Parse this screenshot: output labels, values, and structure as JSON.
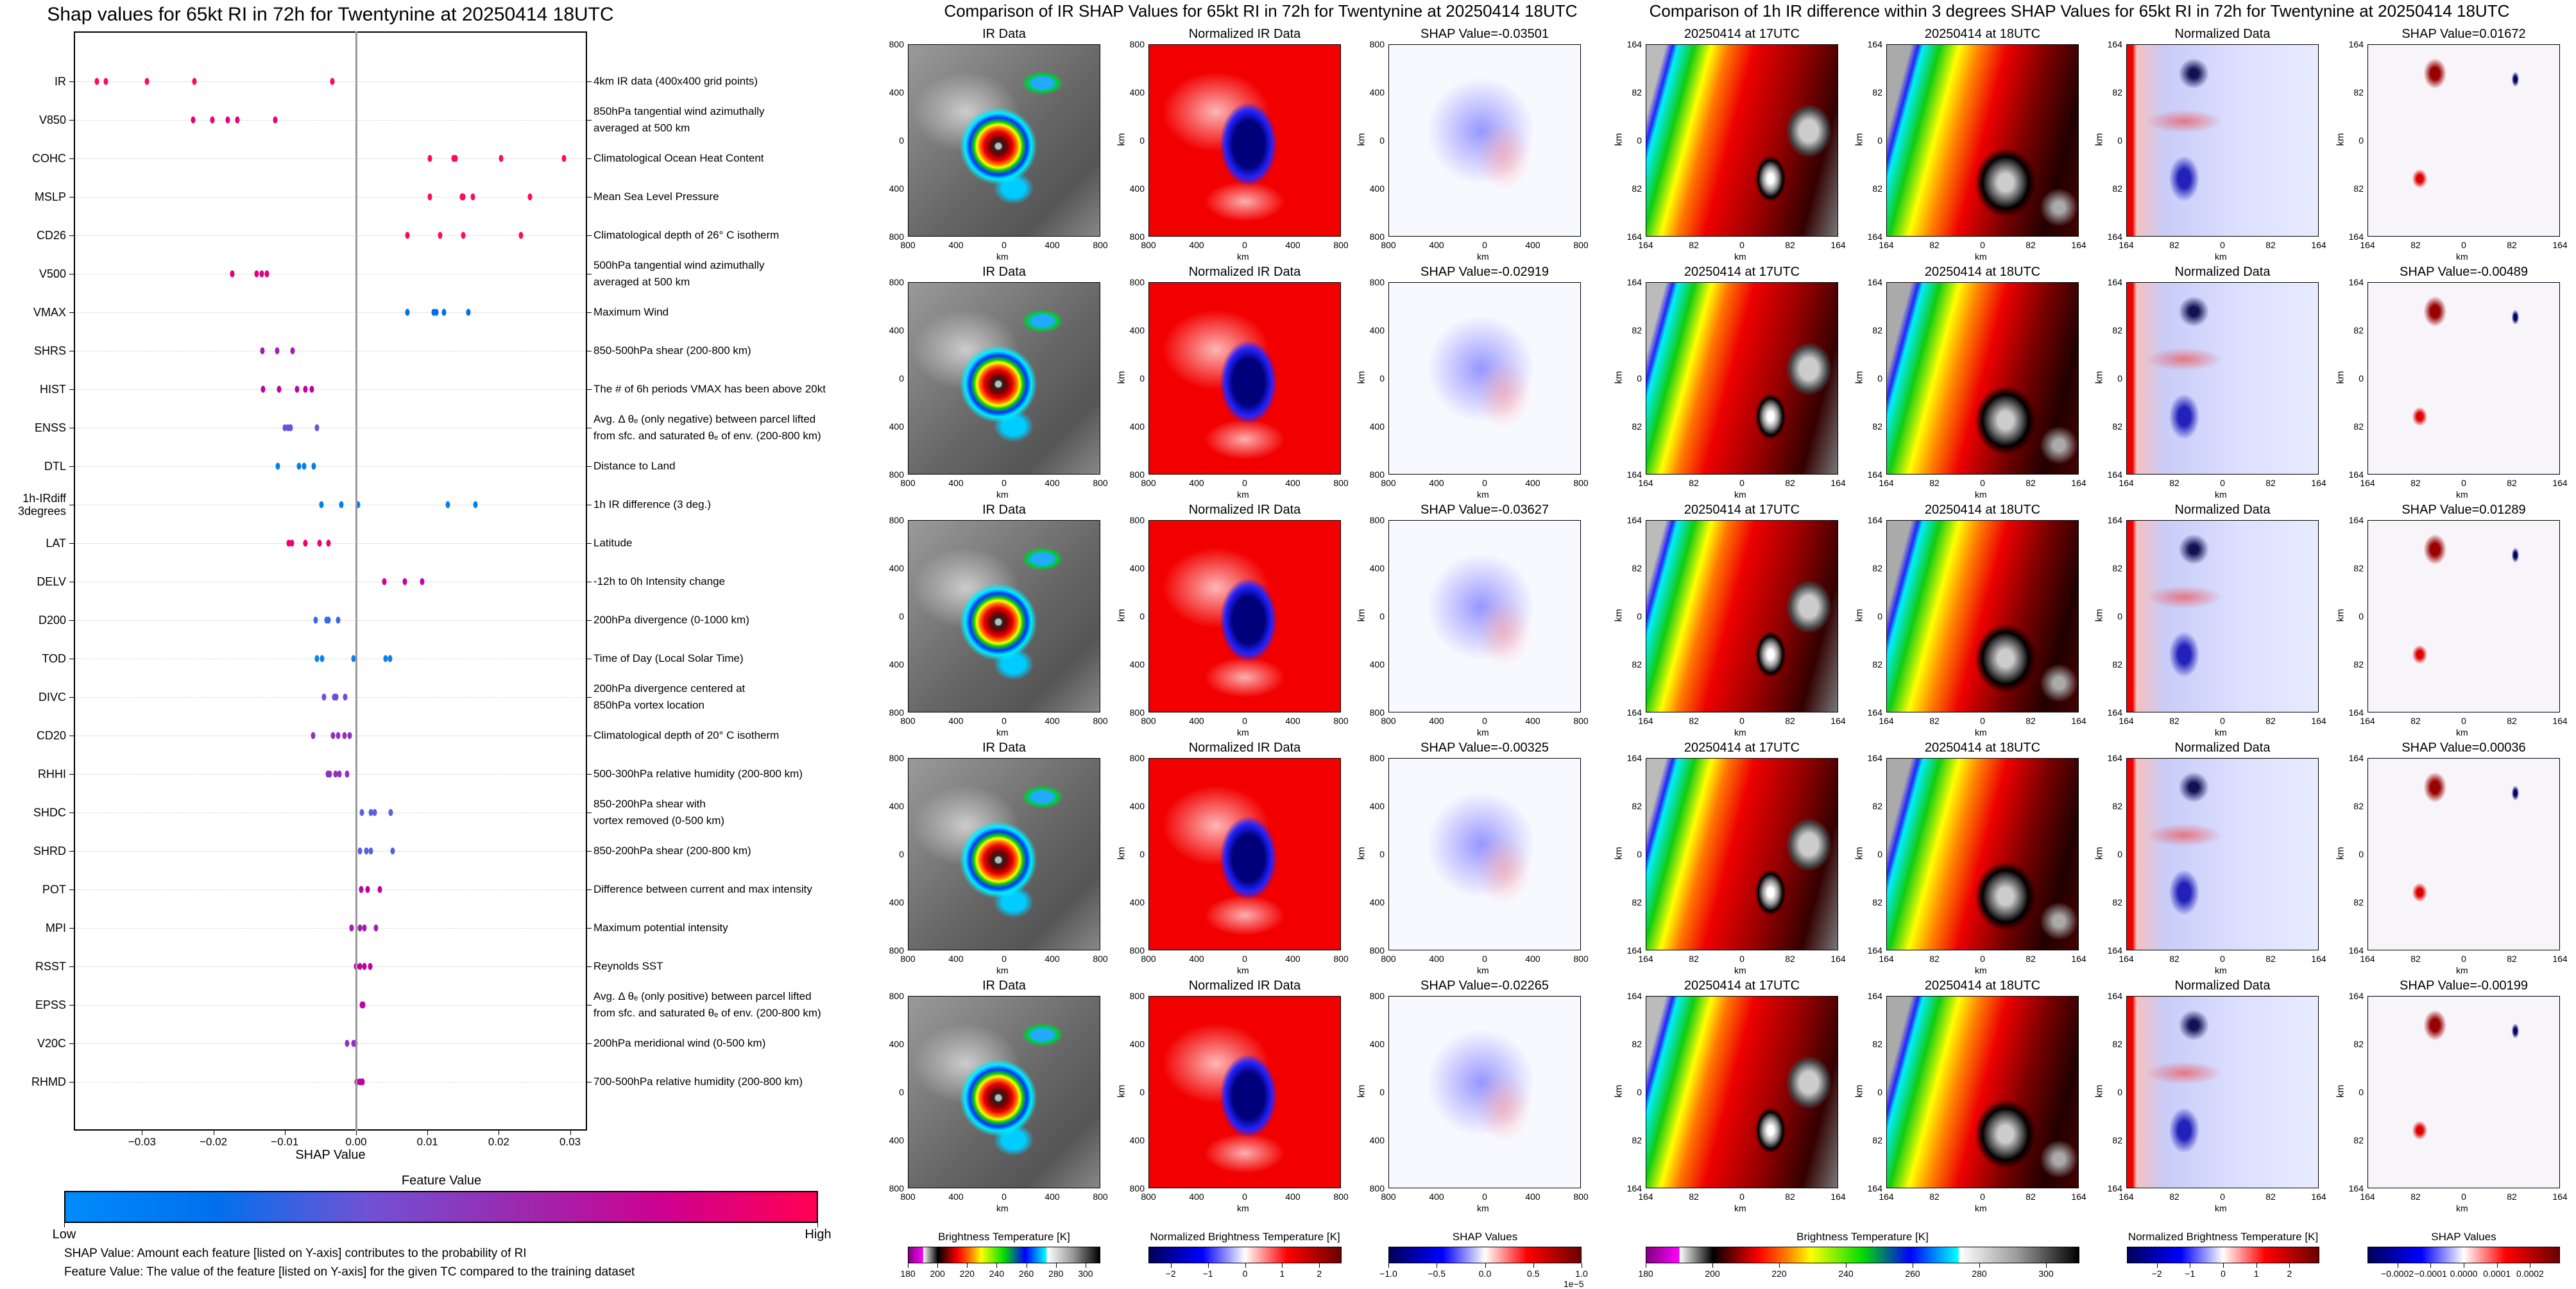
{
  "left": {
    "title": "Shap values for 65kt RI in 72h for Twentynine at 20250414 18UTC",
    "xlabel": "SHAP Value",
    "xrange": [
      -0.0396,
      0.0324
    ],
    "xticks": [
      {
        "v": -0.03,
        "label": "−0.03"
      },
      {
        "v": -0.02,
        "label": "−0.02"
      },
      {
        "v": -0.01,
        "label": "−0.01"
      },
      {
        "v": 0,
        "label": "0.00"
      },
      {
        "v": 0.01,
        "label": "0.01"
      },
      {
        "v": 0.02,
        "label": "0.02"
      },
      {
        "v": 0.03,
        "label": "0.03"
      }
    ],
    "features": [
      {
        "code": "IR",
        "description": "4km IR data (400x400 grid points)",
        "color": "#ff0a5a",
        "shap": [
          -0.0363,
          -0.0351,
          -0.0293,
          -0.0227,
          -0.0033
        ]
      },
      {
        "code": "V850",
        "description": "850hPa tangential wind azimuthally\naveraged at 500 km",
        "color": "#e6007e",
        "shap": [
          -0.0228,
          -0.0201,
          -0.018,
          -0.0166,
          -0.0113
        ]
      },
      {
        "code": "COHC",
        "description": "Climatological Ocean Heat Content",
        "color": "#ff0a5a",
        "shap": [
          0.0103,
          0.0137,
          0.0139,
          0.0203,
          0.0291
        ]
      },
      {
        "code": "MSLP",
        "description": "Mean Sea Level Pressure",
        "color": "#ff0a5a",
        "shap": [
          0.0103,
          0.0148,
          0.015,
          0.0164,
          0.0244
        ]
      },
      {
        "code": "CD26",
        "description": "Climatological depth of 26° C isotherm",
        "color": "#ff0a5a",
        "shap": [
          0.0072,
          0.0118,
          0.015,
          0.0231
        ]
      },
      {
        "code": "V500",
        "description": "500hPa tangential wind azimuthally\naveraged at 500 km",
        "color": "#e0007f",
        "shap": [
          -0.0174,
          -0.0139,
          -0.0132,
          -0.0125
        ]
      },
      {
        "code": "VMAX",
        "description": "Maximum Wind",
        "color": "#0070f0",
        "shap": [
          0.0072,
          0.0109,
          0.0112,
          0.0123,
          0.0157
        ]
      },
      {
        "code": "SHRS",
        "description": "850-500hPa shear (200-800 km)",
        "color": "#a020b0",
        "shap": [
          -0.0131,
          -0.0111,
          -0.0089
        ]
      },
      {
        "code": "HIST",
        "description": "The # of 6h periods VMAX has been above 20kt",
        "color": "#c000a0",
        "shap": [
          -0.013,
          -0.0108,
          -0.0083,
          -0.0071,
          -0.0062
        ]
      },
      {
        "code": "ENSS",
        "description": "Avg. Δ θₑ (only negative) between parcel lifted\nfrom sfc. and saturated θₑ of env. (200-800 km)",
        "color": "#7050d8",
        "shap": [
          -0.01,
          -0.0095,
          -0.0092,
          -0.0055
        ]
      },
      {
        "code": "DTL",
        "description": "Distance to Land",
        "color": "#0080f0",
        "shap": [
          -0.011,
          -0.008,
          -0.0073,
          -0.0059
        ]
      },
      {
        "code": "1h-IRdiff\n3degrees",
        "description": "1h IR difference (3 deg.)",
        "color": "#0080f0",
        "shap": [
          -0.0049,
          -0.0021,
          0.0003,
          0.0129,
          0.0167
        ]
      },
      {
        "code": "LAT",
        "description": "Latitude",
        "color": "#f00070",
        "shap": [
          -0.0094,
          -0.009,
          -0.0071,
          -0.0051,
          -0.0039
        ]
      },
      {
        "code": "DELV",
        "description": "-12h to 0h Intensity change",
        "color": "#d0009a",
        "shap": [
          0.004,
          0.0068,
          0.0093
        ]
      },
      {
        "code": "D200",
        "description": "200hPa divergence (0-1000 km)",
        "color": "#3a6ae8",
        "shap": [
          -0.0057,
          -0.0041,
          -0.0039,
          -0.0025
        ]
      },
      {
        "code": "TOD",
        "description": "Time of Day (Local Solar Time)",
        "color": "#1080f0",
        "shap": [
          -0.0055,
          -0.0048,
          -0.0004,
          0.0041,
          0.0048
        ]
      },
      {
        "code": "DIVC",
        "description": "200hPa divergence centered at\n850hPa vortex location",
        "color": "#6a50d8",
        "shap": [
          -0.0045,
          -0.0031,
          -0.0028,
          -0.0015
        ]
      },
      {
        "code": "CD20",
        "description": "Climatological depth of 20° C isotherm",
        "color": "#9030c0",
        "shap": [
          -0.006,
          -0.0032,
          -0.0025,
          -0.0016,
          -0.0009
        ]
      },
      {
        "code": "RHHI",
        "description": "500-300hPa relative humidity (200-800 km)",
        "color": "#9030c0",
        "shap": [
          -0.004,
          -0.0037,
          -0.0029,
          -0.0023,
          -0.0013
        ]
      },
      {
        "code": "SHDC",
        "description": "850-200hPa shear with\nvortex removed (0-500 km)",
        "color": "#5a60e0",
        "shap": [
          0.0008,
          0.0021,
          0.0026,
          0.0049
        ]
      },
      {
        "code": "SHRD",
        "description": "850-200hPa shear (200-800 km)",
        "color": "#5a60e0",
        "shap": [
          0.0005,
          0.0014,
          0.0021,
          0.0051
        ]
      },
      {
        "code": "POT",
        "description": "Difference between current and max intensity",
        "color": "#c000a0",
        "shap": [
          0.0007,
          0.0016,
          0.0033
        ]
      },
      {
        "code": "MPI",
        "description": "Maximum potential intensity",
        "color": "#a020b0",
        "shap": [
          -0.0006,
          0.0005,
          0.0012,
          0.0028
        ]
      },
      {
        "code": "RSST",
        "description": "Reynolds SST",
        "color": "#c000a0",
        "shap": [
          0.0,
          0.0005,
          0.0012,
          0.002
        ]
      },
      {
        "code": "EPSS",
        "description": "Avg. Δ θₑ (only positive) between parcel lifted\nfrom sfc. and saturated θₑ of env. (200-800 km)",
        "color": "#c000a0",
        "shap": [
          0.0008,
          0.001
        ]
      },
      {
        "code": "V20C",
        "description": "200hPa meridional wind (0-500 km)",
        "color": "#9030c0",
        "shap": [
          -0.0013,
          -0.0004,
          -0.0001
        ]
      },
      {
        "code": "RHMD",
        "description": "700-500hPa relative humidity (200-800 km)",
        "color": "#c000a0",
        "shap": [
          0.0001,
          0.0005,
          0.0009
        ]
      }
    ],
    "colorbar": {
      "title": "Feature Value",
      "low": "Low",
      "high": "High",
      "colors": [
        "#008bfa",
        "#0070ee",
        "#7052d4",
        "#9a2ab0",
        "#d0008f",
        "#ff0052"
      ]
    },
    "notes": [
      "SHAP Value: Amount each feature [listed on Y-axis] contributes to the probability of RI",
      "Feature Value: The value of the feature [listed on Y-axis] for the given TC compared to the training dataset"
    ]
  },
  "ir_section": {
    "title": "Comparison of IR SHAP Values for 65kt RI in 72h for Twentynine at 20250414 18UTC",
    "axis_label": "km",
    "ticks": [
      "800",
      "400",
      "0",
      "400",
      "800"
    ],
    "rows": [
      {
        "titles": [
          "IR Data",
          "Normalized IR Data",
          "SHAP Value=-0.03501"
        ]
      },
      {
        "titles": [
          "IR Data",
          "Normalized IR Data",
          "SHAP Value=-0.02919"
        ]
      },
      {
        "titles": [
          "IR Data",
          "Normalized IR Data",
          "SHAP Value=-0.03627"
        ]
      },
      {
        "titles": [
          "IR Data",
          "Normalized IR Data",
          "SHAP Value=-0.00325"
        ]
      },
      {
        "titles": [
          "IR Data",
          "Normalized IR Data",
          "SHAP Value=-0.02265"
        ]
      }
    ],
    "colorbars": [
      {
        "title": "Brightness Temperature [K]",
        "range": [
          180,
          310
        ],
        "ticks": [
          "180",
          "200",
          "220",
          "240",
          "260",
          "280",
          "300"
        ],
        "tick_values": [
          180,
          200,
          220,
          240,
          260,
          280,
          300
        ],
        "kind": "bt"
      },
      {
        "title": "Normalized Brightness Temperature [K]",
        "range": [
          -2.6,
          2.6
        ],
        "ticks": [
          "−2",
          "−1",
          "0",
          "1",
          "2"
        ],
        "tick_values": [
          -2,
          -1,
          0,
          1,
          2
        ],
        "kind": "div"
      },
      {
        "title": "SHAP Values",
        "range": [
          -1,
          1
        ],
        "ticks": [
          "−1.0",
          "−0.5",
          "0.0",
          "0.5",
          "1.0"
        ],
        "tick_values": [
          -1,
          -0.5,
          0,
          0.5,
          1
        ],
        "kind": "div",
        "offset": "1e−5"
      }
    ]
  },
  "diff_section": {
    "title": "Comparison of 1h IR difference within 3 degrees SHAP Values for 65kt RI in 72h for Twentynine at 20250414 18UTC",
    "axis_label": "km",
    "ticks": [
      "164",
      "82",
      "0",
      "82",
      "164"
    ],
    "rows": [
      {
        "titles": [
          "20250414 at 17UTC",
          "20250414 at 18UTC",
          "Normalized Data",
          "SHAP Value=0.01672"
        ]
      },
      {
        "titles": [
          "20250414 at 17UTC",
          "20250414 at 18UTC",
          "Normalized Data",
          "SHAP Value=-0.00489"
        ]
      },
      {
        "titles": [
          "20250414 at 17UTC",
          "20250414 at 18UTC",
          "Normalized Data",
          "SHAP Value=0.01289"
        ]
      },
      {
        "titles": [
          "20250414 at 17UTC",
          "20250414 at 18UTC",
          "Normalized Data",
          "SHAP Value=0.00036"
        ]
      },
      {
        "titles": [
          "20250414 at 17UTC",
          "20250414 at 18UTC",
          "Normalized Data",
          "SHAP Value=-0.00199"
        ]
      }
    ],
    "colorbars": [
      {
        "title": "Brightness Temperature [K]",
        "range": [
          180,
          310
        ],
        "ticks": [
          "180",
          "200",
          "220",
          "240",
          "260",
          "280",
          "300"
        ],
        "tick_values": [
          180,
          200,
          220,
          240,
          260,
          280,
          300
        ],
        "kind": "bt"
      },
      {
        "title": "Normalized Brightness Temperature [K]",
        "range": [
          -2.9,
          2.9
        ],
        "ticks": [
          "−2",
          "−1",
          "0",
          "1",
          "2"
        ],
        "tick_values": [
          -2,
          -1,
          0,
          1,
          2
        ],
        "kind": "div"
      },
      {
        "title": "SHAP Values",
        "range": [
          -0.00029,
          0.00029
        ],
        "ticks": [
          "−0.0002",
          "−0.0001",
          "0.0000",
          "0.0001",
          "0.0002"
        ],
        "tick_values": [
          -0.0002,
          -0.0001,
          0,
          0.0001,
          0.0002
        ],
        "kind": "div"
      }
    ]
  }
}
